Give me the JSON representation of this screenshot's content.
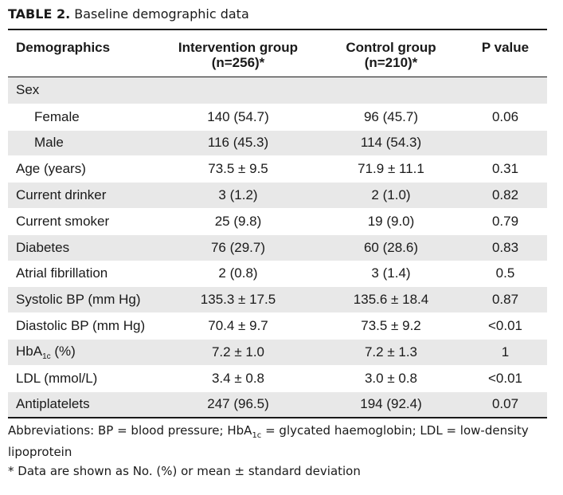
{
  "caption": {
    "label": "TABLE 2.",
    "title": "Baseline demographic data"
  },
  "columns": {
    "c1": "Demographics",
    "c2_line1": "Intervention group",
    "c2_line2": "(n=256)*",
    "c3_line1": "Control group",
    "c3_line2": "(n=210)*",
    "c4": "P value"
  },
  "rows": [
    {
      "label": "Sex",
      "intervention": "",
      "control": "",
      "p": ""
    },
    {
      "label": "Female",
      "intervention": "140 (54.7)",
      "control": "96 (45.7)",
      "p": "0.06"
    },
    {
      "label": "Male",
      "intervention": "116 (45.3)",
      "control": "114 (54.3)",
      "p": ""
    },
    {
      "label": "Age (years)",
      "intervention": "73.5 ± 9.5",
      "control": "71.9 ± 11.1",
      "p": "0.31"
    },
    {
      "label": "Current drinker",
      "intervention": "3 (1.2)",
      "control": "2 (1.0)",
      "p": "0.82"
    },
    {
      "label": "Current smoker",
      "intervention": "25 (9.8)",
      "control": "19 (9.0)",
      "p": "0.79"
    },
    {
      "label": "Diabetes",
      "intervention": "76 (29.7)",
      "control": "60 (28.6)",
      "p": "0.83"
    },
    {
      "label": "Atrial fibrillation",
      "intervention": "2 (0.8)",
      "control": "3 (1.4)",
      "p": "0.5"
    },
    {
      "label": "Systolic BP (mm Hg)",
      "intervention": "135.3 ± 17.5",
      "control": "135.6 ± 18.4",
      "p": "0.87"
    },
    {
      "label": "Diastolic BP (mm Hg)",
      "intervention": "70.4 ± 9.7",
      "control": "73.5 ± 9.2",
      "p": "<0.01"
    },
    {
      "label_main": "HbA",
      "label_sub": "1c",
      "label_rest": " (%)",
      "intervention": "7.2 ± 1.0",
      "control": "7.2 ± 1.3",
      "p": "1"
    },
    {
      "label": "LDL (mmol/L)",
      "intervention": "3.4 ± 0.8",
      "control": "3.0 ± 0.8",
      "p": "<0.01"
    },
    {
      "label": "Antiplatelets",
      "intervention": "247 (96.5)",
      "control": "194 (92.4)",
      "p": "0.07"
    }
  ],
  "footnotes": {
    "abbr_prefix": "Abbreviations: BP = blood pressure; HbA",
    "abbr_sub": "1c",
    "abbr_suffix": " = glycated haemoglobin; LDL = low-density lipoprotein",
    "note": "*   Data are shown as No. (%) or mean ± standard deviation"
  }
}
